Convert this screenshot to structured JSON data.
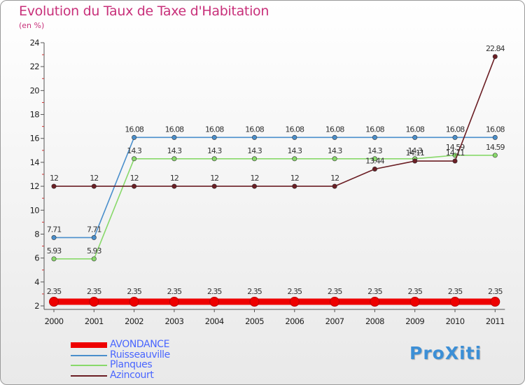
{
  "title": "Evolution du Taux de Taxe d'Habitation",
  "subtitle": "(en %)",
  "logo": "ProXiti",
  "chart_data": {
    "type": "line",
    "title": "Evolution du Taux de Taxe d'Habitation",
    "subtitle": "(en %)",
    "x": [
      "2000",
      "2001",
      "2002",
      "2003",
      "2004",
      "2005",
      "2006",
      "2007",
      "2008",
      "2009",
      "2010",
      "2011"
    ],
    "ylim": [
      2,
      24
    ],
    "yticks": [
      2,
      4,
      6,
      8,
      10,
      12,
      14,
      16,
      18,
      20,
      22,
      24
    ],
    "ytick_labels": [
      "2",
      "4",
      "6",
      "8",
      "10",
      "12",
      "14",
      "16",
      "18",
      "20",
      "22",
      "24"
    ],
    "grid": false,
    "legend": "bottom-left",
    "series": [
      {
        "name": "AVONDANCE",
        "color": "#ee0000",
        "values": [
          2.35,
          2.35,
          2.35,
          2.35,
          2.35,
          2.35,
          2.35,
          2.35,
          2.35,
          2.35,
          2.35,
          2.35
        ],
        "labels": [
          "2.35",
          "2.35",
          "2.35",
          "2.35",
          "2.35",
          "2.35",
          "2.35",
          "2.35",
          "2.35",
          "2.35",
          "2.35",
          "2.35"
        ]
      },
      {
        "name": "Ruisseauville",
        "color": "#4a8fcc",
        "values": [
          7.71,
          7.71,
          16.08,
          16.08,
          16.08,
          16.08,
          16.08,
          16.08,
          16.08,
          16.08,
          16.08,
          16.08
        ],
        "labels": [
          "7.71",
          "7.71",
          "16.08",
          "16.08",
          "16.08",
          "16.08",
          "16.08",
          "16.08",
          "16.08",
          "16.08",
          "16.08",
          "16.08"
        ]
      },
      {
        "name": "Planques",
        "color": "#88d96a",
        "values": [
          5.93,
          5.93,
          14.3,
          14.3,
          14.3,
          14.3,
          14.3,
          14.3,
          14.3,
          14.3,
          14.59,
          14.59
        ],
        "labels": [
          "5.93",
          "5.93",
          "14.3",
          "14.3",
          "14.3",
          "14.3",
          "14.3",
          "14.3",
          "14.3",
          "14.3",
          "14.59",
          "14.59"
        ]
      },
      {
        "name": "Azincourt",
        "color": "#6b1e24",
        "values": [
          12,
          12,
          12,
          12,
          12,
          12,
          12,
          12,
          13.44,
          14.11,
          14.11,
          22.84
        ],
        "labels": [
          "12",
          "12",
          "12",
          "12",
          "12",
          "12",
          "12",
          "12",
          "13.44",
          "14.11",
          "14.11",
          "22.84"
        ]
      }
    ]
  }
}
